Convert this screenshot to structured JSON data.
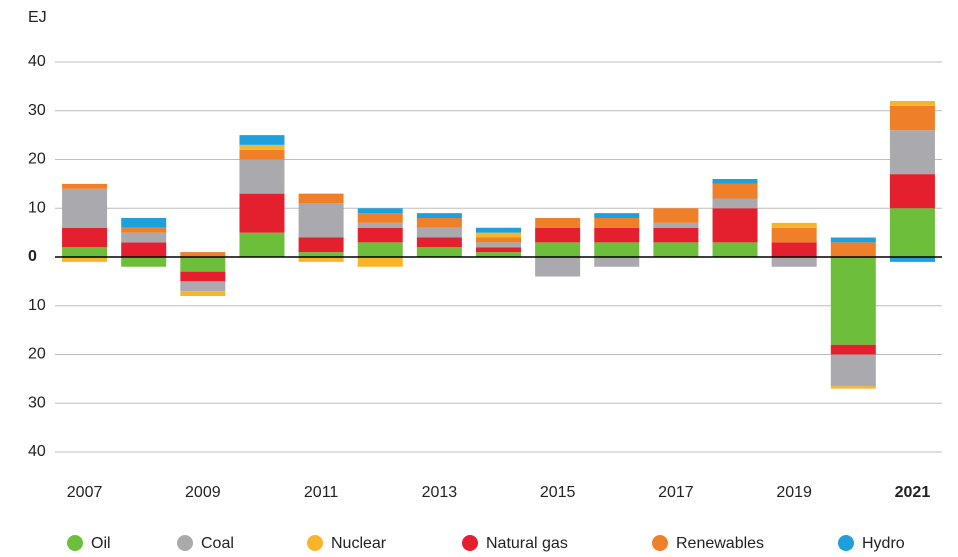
{
  "chart_data": {
    "type": "bar",
    "stacked": true,
    "y_label": "EJ",
    "categories": [
      "2007",
      null,
      "2009",
      null,
      "2011",
      null,
      "2013",
      null,
      "2015",
      null,
      "2017",
      null,
      "2019",
      null,
      "2021"
    ],
    "series": [
      {
        "name": "Oil",
        "color": "#6dbf3b",
        "values": [
          2,
          -2,
          -3,
          5,
          1,
          3,
          2,
          1,
          3,
          3,
          3,
          3,
          0,
          -18,
          10
        ]
      },
      {
        "name": "Coal",
        "color": "#aaa9ad",
        "values": [
          8,
          2,
          -2,
          7,
          7,
          1,
          2,
          1,
          -4,
          -2,
          1,
          2,
          -2,
          -6.5,
          9
        ]
      },
      {
        "name": "Nuclear",
        "color": "#f9b52a",
        "values": [
          -1,
          0,
          -1,
          1,
          -1,
          -2,
          0,
          1,
          0,
          0,
          0,
          0,
          1,
          -0.5,
          1
        ]
      },
      {
        "name": "Natural gas",
        "color": "#e5202e",
        "values": [
          4,
          3,
          -2,
          8,
          3,
          3,
          2,
          1,
          3,
          3,
          3,
          7,
          3,
          -2,
          7
        ]
      },
      {
        "name": "Renewables",
        "color": "#f07f2a",
        "values": [
          1,
          1,
          1,
          2,
          2,
          2,
          2,
          1,
          2,
          2,
          3,
          3,
          3,
          3,
          5
        ]
      },
      {
        "name": "Hydro",
        "color": "#1ea0dc",
        "values": [
          0,
          2,
          0,
          2,
          0,
          1,
          1,
          1,
          0,
          1,
          0,
          1,
          0,
          1,
          -1
        ]
      }
    ],
    "ylim": [
      -40,
      40
    ],
    "yticks": [
      40,
      30,
      20,
      10,
      0,
      {
        "value": -10,
        "label": "10"
      },
      {
        "value": -20,
        "label": "20"
      },
      {
        "value": -30,
        "label": "30"
      },
      {
        "value": -40,
        "label": "40"
      }
    ],
    "grid": true,
    "legend": "bottom"
  }
}
